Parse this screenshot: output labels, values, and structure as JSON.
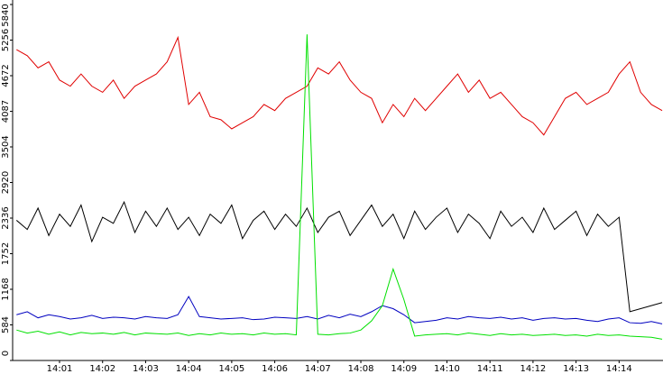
{
  "chart_data": {
    "type": "line",
    "x": [
      0,
      0.25,
      0.5,
      0.75,
      1,
      1.25,
      1.5,
      1.75,
      2,
      2.25,
      2.5,
      2.75,
      3,
      3.25,
      3.5,
      3.75,
      4,
      4.25,
      4.5,
      4.75,
      5,
      5.25,
      5.5,
      5.75,
      6,
      6.25,
      6.5,
      6.75,
      7,
      7.25,
      7.5,
      7.75,
      8,
      8.25,
      8.5,
      8.75,
      9,
      9.25,
      9.5,
      9.75,
      10,
      10.25,
      10.5,
      10.75,
      11,
      11.25,
      11.5,
      11.75,
      12,
      12.25,
      12.5,
      12.75,
      13,
      13.25,
      13.5,
      13.75,
      14,
      14.25,
      14.5,
      14.75,
      15
    ],
    "xlim": [
      -0.09,
      15.02
    ],
    "xticks": [
      {
        "value": 1,
        "label": "14:01"
      },
      {
        "value": 2,
        "label": "14:02"
      },
      {
        "value": 3,
        "label": "14:03"
      },
      {
        "value": 4,
        "label": "14:04"
      },
      {
        "value": 5,
        "label": "14:05"
      },
      {
        "value": 6,
        "label": "14:06"
      },
      {
        "value": 7,
        "label": "14:07"
      },
      {
        "value": 8,
        "label": "14:08"
      },
      {
        "value": 9,
        "label": "14:09"
      },
      {
        "value": 10,
        "label": "14:10"
      },
      {
        "value": 11,
        "label": "14:11"
      },
      {
        "value": 12,
        "label": "14:12"
      },
      {
        "value": 13,
        "label": "14:13"
      },
      {
        "value": 14,
        "label": "14:14"
      }
    ],
    "ylim": [
      0,
      5840
    ],
    "yticks": [
      0,
      584,
      1168,
      1752,
      2336,
      2920,
      3504,
      4087,
      4672,
      5256,
      5840
    ],
    "series": [
      {
        "color": "#e00000",
        "values": [
          5100,
          5000,
          4800,
          4900,
          4600,
          4500,
          4700,
          4500,
          4400,
          4600,
          4300,
          4500,
          4600,
          4700,
          4900,
          5300,
          4200,
          4400,
          4000,
          3950,
          3800,
          3900,
          4000,
          4200,
          4100,
          4300,
          4400,
          4500,
          4800,
          4700,
          4900,
          4600,
          4400,
          4300,
          3900,
          4200,
          4000,
          4300,
          4100,
          4300,
          4500,
          4700,
          4400,
          4600,
          4300,
          4400,
          4200,
          4000,
          3900,
          3700,
          4000,
          4300,
          4400,
          4200,
          4300,
          4400,
          4700,
          4900,
          4400,
          4200,
          4100
        ]
      },
      {
        "color": "#000000",
        "values": [
          2300,
          2150,
          2500,
          2050,
          2400,
          2200,
          2550,
          1950,
          2350,
          2250,
          2600,
          2100,
          2450,
          2200,
          2500,
          2150,
          2350,
          2050,
          2400,
          2250,
          2550,
          2000,
          2300,
          2450,
          2150,
          2400,
          2200,
          2500,
          2100,
          2350,
          2450,
          2050,
          2300,
          2550,
          2200,
          2400,
          2000,
          2450,
          2150,
          2350,
          2500,
          2100,
          2400,
          2250,
          2000,
          2450,
          2200,
          2350,
          2100,
          2500,
          2150,
          2300,
          2450,
          2050,
          2400,
          2200,
          2350,
          800,
          850,
          900,
          950
        ]
      },
      {
        "color": "#0000c0",
        "values": [
          750,
          800,
          700,
          750,
          720,
          680,
          700,
          740,
          690,
          710,
          700,
          680,
          720,
          700,
          690,
          750,
          1050,
          720,
          700,
          680,
          690,
          700,
          670,
          680,
          710,
          700,
          690,
          720,
          680,
          740,
          700,
          760,
          720,
          800,
          900,
          850,
          750,
          620,
          640,
          660,
          700,
          680,
          720,
          700,
          690,
          710,
          680,
          700,
          660,
          690,
          700,
          680,
          690,
          660,
          640,
          680,
          700,
          620,
          610,
          640,
          600
        ]
      },
      {
        "color": "#00e000",
        "values": [
          500,
          450,
          480,
          430,
          470,
          420,
          460,
          440,
          450,
          430,
          460,
          420,
          450,
          440,
          430,
          450,
          410,
          440,
          420,
          450,
          430,
          440,
          420,
          450,
          430,
          440,
          420,
          5350,
          430,
          420,
          440,
          450,
          500,
          650,
          900,
          1500,
          1000,
          400,
          420,
          430,
          440,
          420,
          450,
          430,
          410,
          440,
          420,
          430,
          410,
          420,
          430,
          410,
          420,
          400,
          430,
          410,
          420,
          400,
          390,
          380,
          350
        ]
      }
    ]
  }
}
